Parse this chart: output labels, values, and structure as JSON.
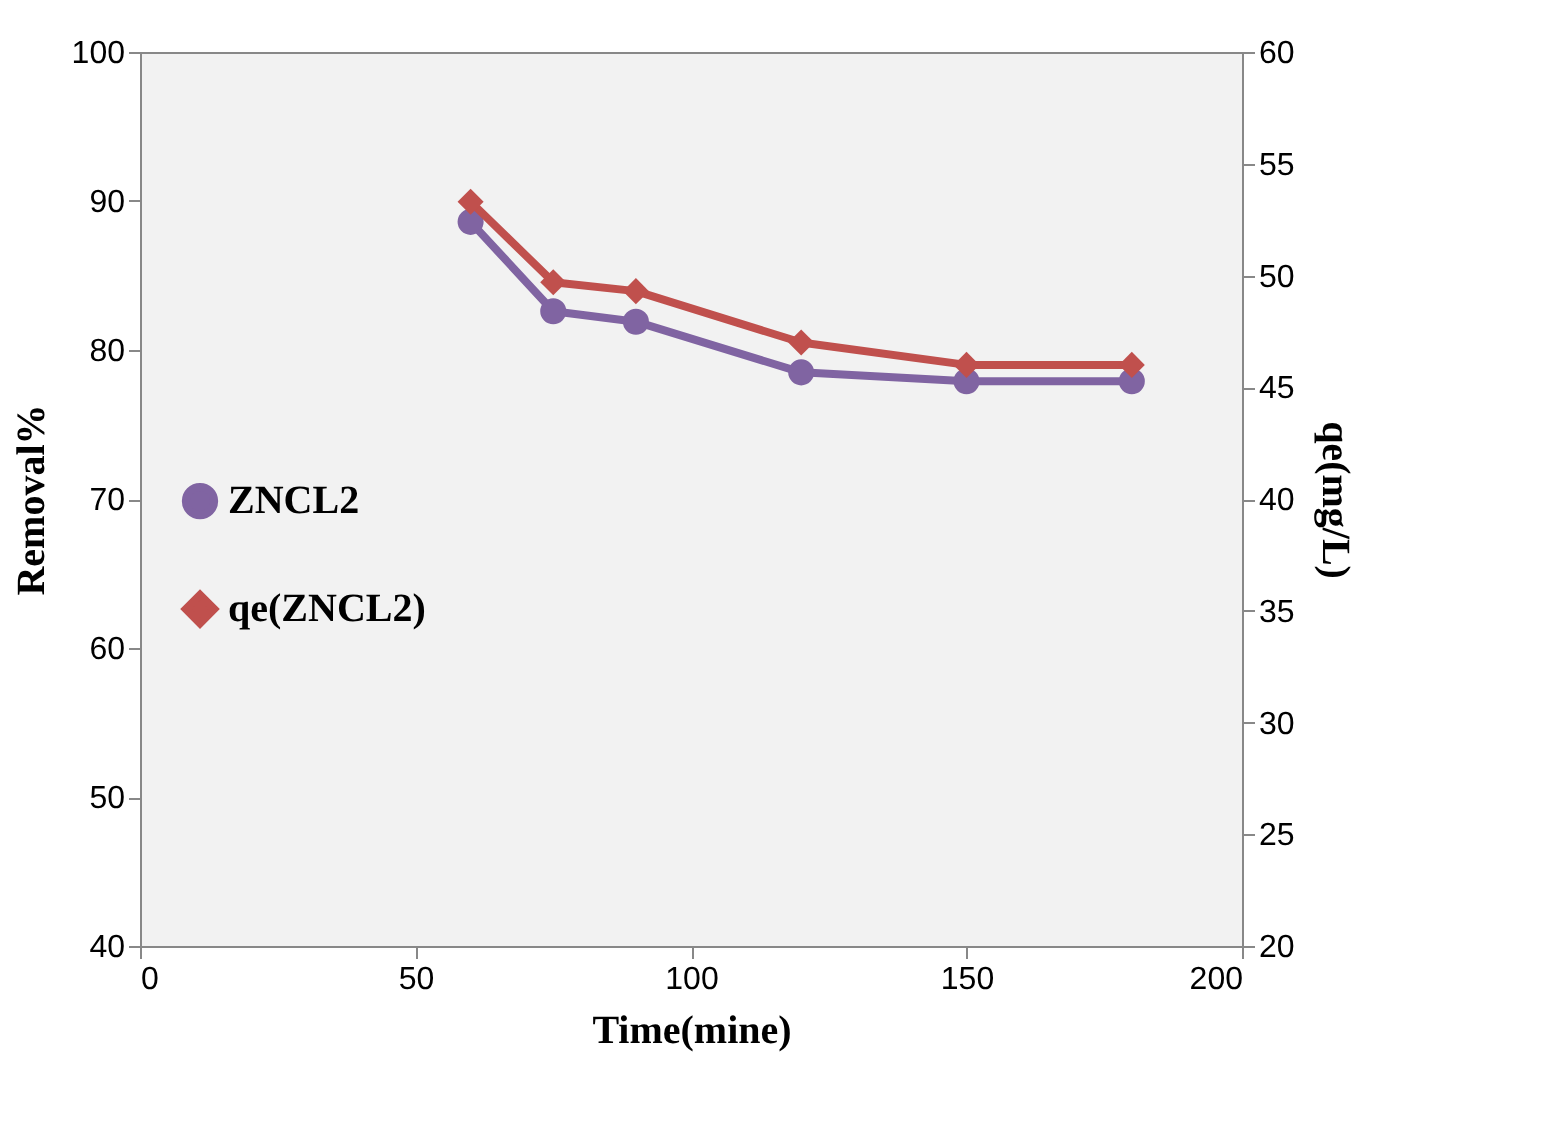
{
  "chart_data": {
    "type": "line",
    "xlabel": "Time(mine)",
    "ylabel": "Removal%",
    "y2label": "qe(mg/L)",
    "xlim": [
      0,
      200
    ],
    "xticks": [
      0,
      50,
      100,
      150,
      200
    ],
    "ylim": [
      40,
      100
    ],
    "yticks": [
      40,
      50,
      60,
      70,
      80,
      90,
      100
    ],
    "y2lim": [
      20,
      60
    ],
    "y2ticks": [
      20,
      25,
      30,
      35,
      40,
      45,
      50,
      55,
      60
    ],
    "grid": false,
    "legend": "left",
    "x": [
      60,
      75,
      90,
      120,
      150,
      180
    ],
    "series": [
      {
        "name": "ZNCL2",
        "color": "#8064a2",
        "marker": "circle",
        "values": [
          88.6,
          82.6,
          81.9,
          78.5,
          77.9,
          77.9
        ]
      },
      {
        "name": "qe(ZNCL2)",
        "color": "#c0504d",
        "marker": "diamond",
        "axis": "y2",
        "values": [
          53.3,
          49.7,
          49.3,
          47.0,
          46.0,
          46.0
        ]
      }
    ]
  }
}
